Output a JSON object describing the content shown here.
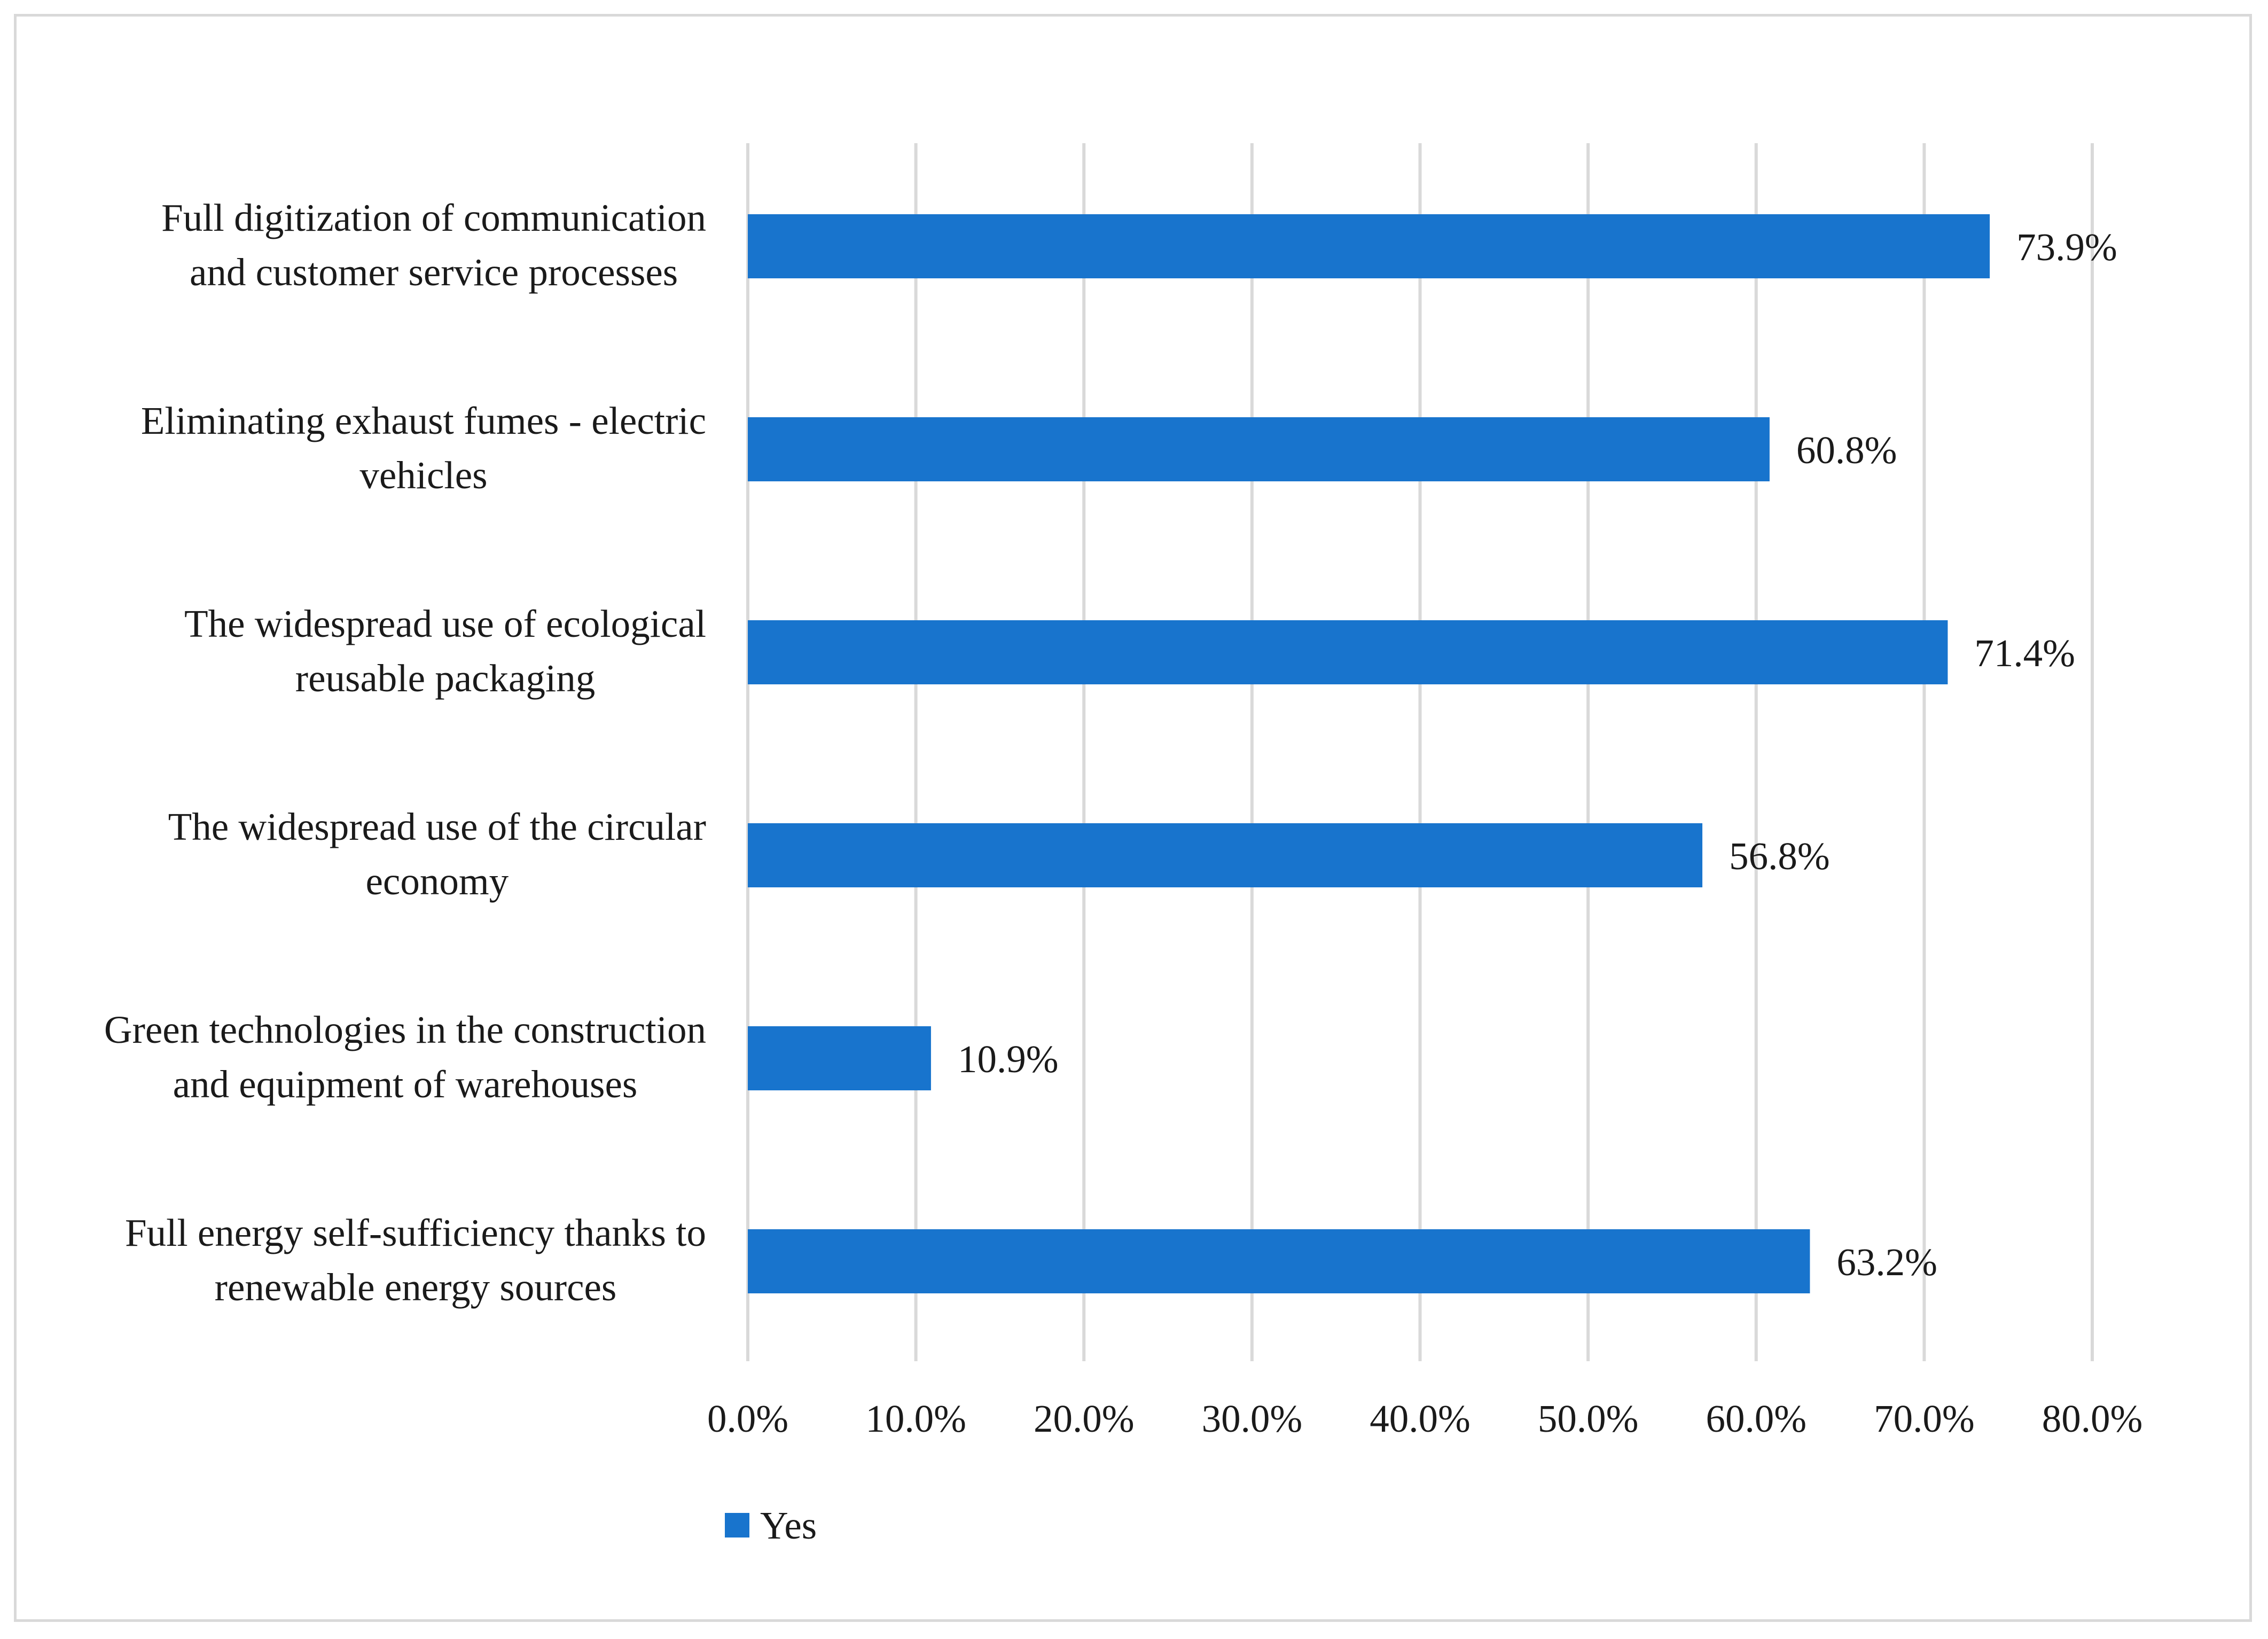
{
  "chart_data": {
    "type": "bar",
    "orientation": "horizontal",
    "title": "",
    "xlabel": "",
    "ylabel": "",
    "xlim": [
      0,
      80
    ],
    "x_ticks": [
      0,
      10,
      20,
      30,
      40,
      50,
      60,
      70,
      80
    ],
    "tick_labels": [
      "0.0%",
      "10.0%",
      "20.0%",
      "30.0%",
      "40.0%",
      "50.0%",
      "60.0%",
      "70.0%",
      "80.0%"
    ],
    "grid": true,
    "legend": {
      "position": "bottom-left",
      "entries": [
        "Yes"
      ]
    },
    "categories": [
      [
        "Full digitization of communication",
        "and customer service processes"
      ],
      [
        "Eliminating exhaust fumes - electric",
        "vehicles"
      ],
      [
        "The widespread use of ecological",
        "reusable packaging"
      ],
      [
        "The widespread use of the circular",
        "economy"
      ],
      [
        "Green technologies in the construction",
        "and equipment of warehouses"
      ],
      [
        "Full energy self-sufficiency thanks to",
        "renewable energy sources"
      ]
    ],
    "series": [
      {
        "name": "Yes",
        "color": "#1874cd",
        "values": [
          73.9,
          60.8,
          71.4,
          56.8,
          10.9,
          63.2
        ],
        "value_labels": [
          "73.9%",
          "60.8%",
          "71.4%",
          "56.8%",
          "10.9%",
          "63.2%"
        ]
      }
    ]
  }
}
